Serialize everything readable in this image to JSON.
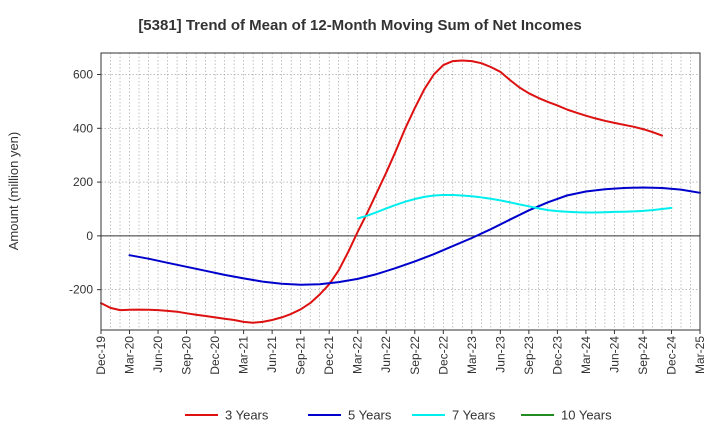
{
  "chart_data": {
    "type": "line",
    "title": "[5381]  Trend of Mean of 12-Month Moving Sum of Net Incomes",
    "ylabel": "Amount (million yen)",
    "xlabel": "",
    "x_tick_labels": [
      "Dec-19",
      "Mar-20",
      "Jun-20",
      "Sep-20",
      "Dec-20",
      "Mar-21",
      "Jun-21",
      "Sep-21",
      "Dec-21",
      "Mar-22",
      "Jun-22",
      "Sep-22",
      "Dec-22",
      "Mar-23",
      "Jun-23",
      "Sep-23",
      "Dec-23",
      "Mar-24",
      "Jun-24",
      "Sep-24",
      "Dec-24",
      "Mar-25"
    ],
    "y_ticks": [
      -200,
      0,
      200,
      400,
      600
    ],
    "xlim": [
      "2019-12",
      "2025-03"
    ],
    "ylim": [
      -350,
      680
    ],
    "grid": true,
    "legend_position": "bottom",
    "series": [
      {
        "name": "3 Years",
        "color": "#dd1111",
        "points": [
          [
            "2019-12",
            -250
          ],
          [
            "2020-01",
            -268
          ],
          [
            "2020-02",
            -276
          ],
          [
            "2020-03",
            -275
          ],
          [
            "2020-04",
            -274
          ],
          [
            "2020-05",
            -275
          ],
          [
            "2020-06",
            -276
          ],
          [
            "2020-07",
            -279
          ],
          [
            "2020-08",
            -282
          ],
          [
            "2020-09",
            -288
          ],
          [
            "2020-10",
            -293
          ],
          [
            "2020-11",
            -298
          ],
          [
            "2020-12",
            -303
          ],
          [
            "2021-01",
            -308
          ],
          [
            "2021-02",
            -313
          ],
          [
            "2021-03",
            -320
          ],
          [
            "2021-04",
            -323
          ],
          [
            "2021-05",
            -320
          ],
          [
            "2021-06",
            -313
          ],
          [
            "2021-07",
            -303
          ],
          [
            "2021-08",
            -290
          ],
          [
            "2021-09",
            -273
          ],
          [
            "2021-10",
            -250
          ],
          [
            "2021-11",
            -218
          ],
          [
            "2021-12",
            -180
          ],
          [
            "2022-01",
            -128
          ],
          [
            "2022-02",
            -60
          ],
          [
            "2022-03",
            15
          ],
          [
            "2022-04",
            85
          ],
          [
            "2022-05",
            160
          ],
          [
            "2022-06",
            235
          ],
          [
            "2022-07",
            315
          ],
          [
            "2022-08",
            400
          ],
          [
            "2022-09",
            475
          ],
          [
            "2022-10",
            545
          ],
          [
            "2022-11",
            600
          ],
          [
            "2022-12",
            635
          ],
          [
            "2023-01",
            650
          ],
          [
            "2023-02",
            652
          ],
          [
            "2023-03",
            650
          ],
          [
            "2023-04",
            642
          ],
          [
            "2023-05",
            628
          ],
          [
            "2023-06",
            610
          ],
          [
            "2023-07",
            580
          ],
          [
            "2023-08",
            552
          ],
          [
            "2023-09",
            530
          ],
          [
            "2023-10",
            513
          ],
          [
            "2023-11",
            498
          ],
          [
            "2023-12",
            485
          ],
          [
            "2024-01",
            470
          ],
          [
            "2024-02",
            458
          ],
          [
            "2024-03",
            447
          ],
          [
            "2024-04",
            437
          ],
          [
            "2024-05",
            428
          ],
          [
            "2024-06",
            420
          ],
          [
            "2024-07",
            413
          ],
          [
            "2024-08",
            406
          ],
          [
            "2024-09",
            397
          ],
          [
            "2024-10",
            386
          ],
          [
            "2024-11",
            373
          ]
        ]
      },
      {
        "name": "5 Years",
        "color": "#0000cc",
        "points": [
          [
            "2020-03",
            -72
          ],
          [
            "2020-05",
            -85
          ],
          [
            "2020-07",
            -100
          ],
          [
            "2020-09",
            -115
          ],
          [
            "2020-11",
            -130
          ],
          [
            "2021-01",
            -145
          ],
          [
            "2021-03",
            -158
          ],
          [
            "2021-05",
            -170
          ],
          [
            "2021-07",
            -178
          ],
          [
            "2021-09",
            -182
          ],
          [
            "2021-11",
            -180
          ],
          [
            "2022-01",
            -172
          ],
          [
            "2022-03",
            -160
          ],
          [
            "2022-05",
            -142
          ],
          [
            "2022-07",
            -120
          ],
          [
            "2022-09",
            -95
          ],
          [
            "2022-11",
            -68
          ],
          [
            "2023-01",
            -38
          ],
          [
            "2023-03",
            -8
          ],
          [
            "2023-05",
            25
          ],
          [
            "2023-07",
            60
          ],
          [
            "2023-09",
            95
          ],
          [
            "2023-11",
            125
          ],
          [
            "2024-01",
            150
          ],
          [
            "2024-03",
            165
          ],
          [
            "2024-05",
            173
          ],
          [
            "2024-07",
            178
          ],
          [
            "2024-09",
            180
          ],
          [
            "2024-11",
            178
          ],
          [
            "2025-01",
            172
          ],
          [
            "2025-03",
            160
          ]
        ]
      },
      {
        "name": "7 Years",
        "color": "#00eeee",
        "points": [
          [
            "2022-03",
            65
          ],
          [
            "2022-04",
            75
          ],
          [
            "2022-05",
            88
          ],
          [
            "2022-06",
            102
          ],
          [
            "2022-07",
            115
          ],
          [
            "2022-08",
            127
          ],
          [
            "2022-09",
            137
          ],
          [
            "2022-10",
            145
          ],
          [
            "2022-11",
            150
          ],
          [
            "2022-12",
            152
          ],
          [
            "2023-01",
            152
          ],
          [
            "2023-02",
            150
          ],
          [
            "2023-03",
            147
          ],
          [
            "2023-04",
            143
          ],
          [
            "2023-05",
            138
          ],
          [
            "2023-06",
            132
          ],
          [
            "2023-07",
            125
          ],
          [
            "2023-08",
            117
          ],
          [
            "2023-09",
            110
          ],
          [
            "2023-10",
            102
          ],
          [
            "2023-11",
            96
          ],
          [
            "2023-12",
            92
          ],
          [
            "2024-01",
            90
          ],
          [
            "2024-02",
            88
          ],
          [
            "2024-03",
            87
          ],
          [
            "2024-04",
            87
          ],
          [
            "2024-05",
            88
          ],
          [
            "2024-06",
            89
          ],
          [
            "2024-07",
            90
          ],
          [
            "2024-08",
            91
          ],
          [
            "2024-09",
            93
          ],
          [
            "2024-10",
            96
          ],
          [
            "2024-11",
            100
          ],
          [
            "2024-12",
            104
          ]
        ]
      },
      {
        "name": "10 Years",
        "color": "#228b22",
        "points": []
      }
    ]
  }
}
